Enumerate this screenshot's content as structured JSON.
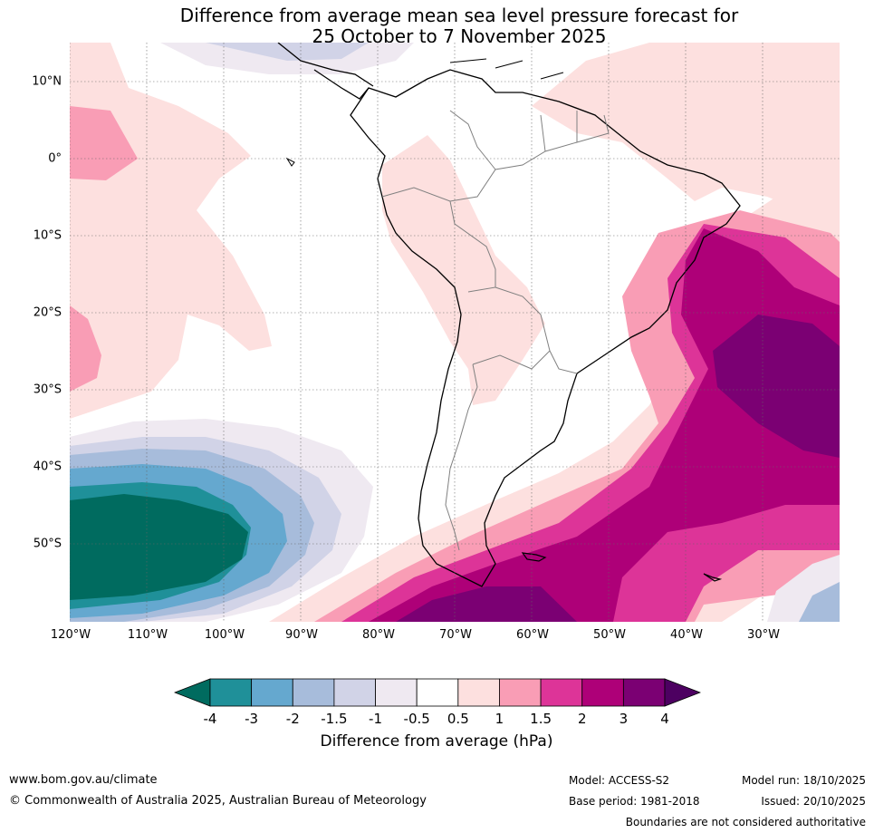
{
  "title_line1": "Difference from average mean sea level pressure forecast for",
  "title_line2": "25 October to 7 November 2025",
  "latitude_labels": [
    "10°N",
    "0°",
    "10°S",
    "20°S",
    "30°S",
    "40°S",
    "50°S"
  ],
  "longitude_labels": [
    "120°W",
    "110°W",
    "100°W",
    "90°W",
    "80°W",
    "70°W",
    "60°W",
    "50°W",
    "40°W",
    "30°W"
  ],
  "colorbar": {
    "ticks": [
      "-4",
      "-3",
      "-2",
      "-1.5",
      "-1",
      "-0.5",
      "0.5",
      "1",
      "1.5",
      "2",
      "3",
      "4"
    ],
    "colors": [
      "#006b5f",
      "#1f9099",
      "#65a8cf",
      "#a7bcdb",
      "#d1d3e7",
      "#efe9f1",
      "#ffffff",
      "#fde0df",
      "#f99db5",
      "#dd3498",
      "#ae0078",
      "#7b0073",
      "#4d0061"
    ],
    "title": "Difference from average (hPa)"
  },
  "legend_colors": {
    "land_outline": "#000000",
    "border": "#808080",
    "grid": "#666666"
  },
  "footer": {
    "website": "www.bom.gov.au/climate",
    "copyright": "© Commonwealth of Australia 2025, Australian Bureau of Meteorology",
    "model": "Model: ACCESS-S2",
    "base_period": "Base period: 1981-2018",
    "model_run": "Model run: 18/10/2025",
    "issued": "Issued: 20/10/2025",
    "disclaimer": "Boundaries are not considered authoritative"
  }
}
